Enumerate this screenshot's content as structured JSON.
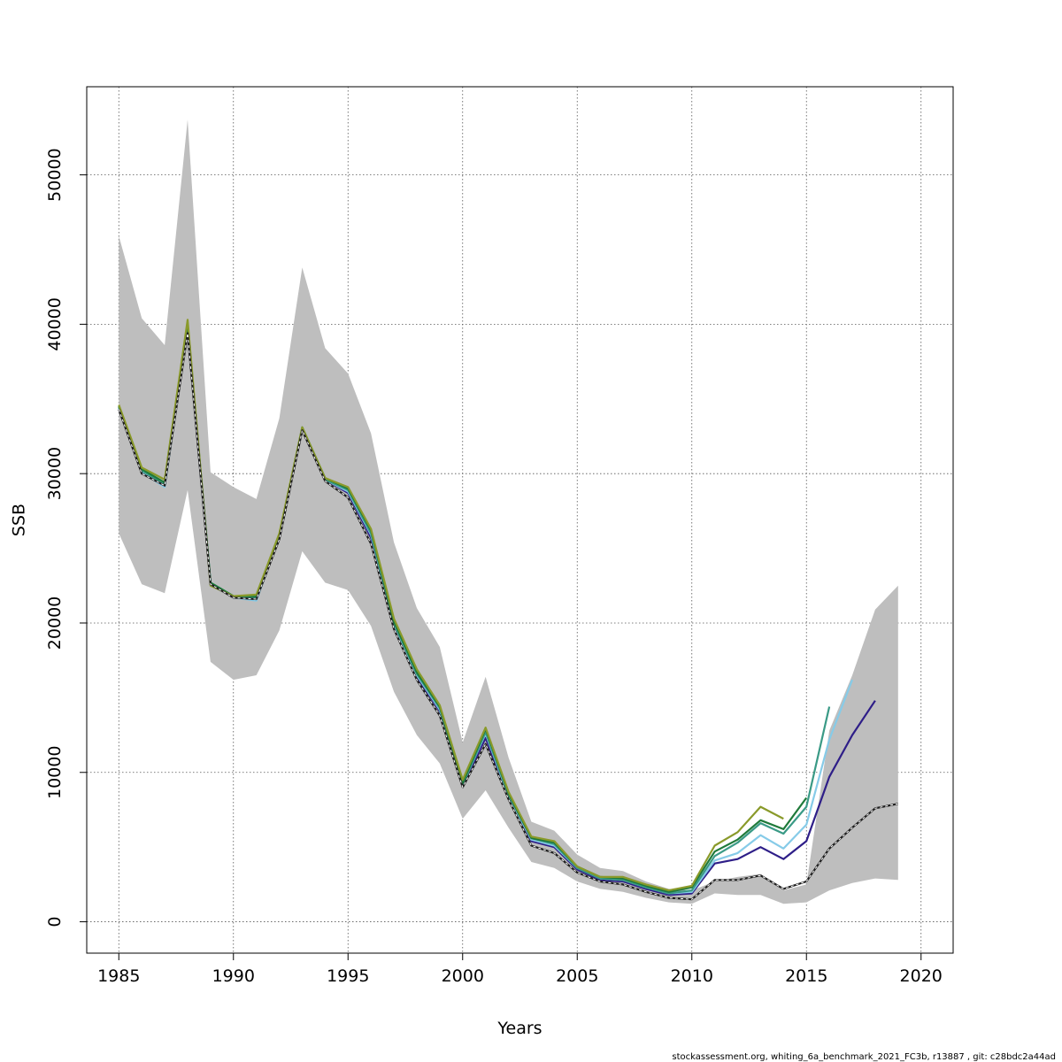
{
  "chart_data": {
    "type": "line",
    "title": "",
    "xlabel": "Years",
    "ylabel": "SSB",
    "xlim": [
      1983.6,
      2021.4
    ],
    "ylim": [
      -2100,
      55900
    ],
    "x_ticks": [
      1985,
      1990,
      1995,
      2000,
      2005,
      2010,
      2015,
      2020
    ],
    "y_ticks": [
      0,
      10000,
      20000,
      30000,
      40000,
      50000
    ],
    "grid": true,
    "grid_style": "dotted",
    "legend": "none",
    "confidence_band": {
      "color": "#bebebe",
      "x": [
        1985,
        1986,
        1987,
        1988,
        1989,
        1990,
        1991,
        1992,
        1993,
        1994,
        1995,
        1996,
        1997,
        1998,
        1999,
        2000,
        2001,
        2002,
        2003,
        2004,
        2005,
        2006,
        2007,
        2008,
        2009,
        2010,
        2011,
        2012,
        2013,
        2014,
        2015,
        2016,
        2017,
        2018,
        2019
      ],
      "upper": [
        45900,
        40400,
        38600,
        53700,
        30100,
        29100,
        28300,
        33700,
        43800,
        38400,
        36700,
        32700,
        25400,
        21000,
        18400,
        12000,
        16400,
        11000,
        6700,
        6100,
        4500,
        3600,
        3400,
        2700,
        2200,
        2100,
        2700,
        3000,
        3200,
        2100,
        2500,
        12800,
        16500,
        20900,
        22500
      ],
      "lower": [
        26000,
        22600,
        22000,
        28900,
        17400,
        16200,
        16500,
        19500,
        24800,
        22700,
        22200,
        19800,
        15400,
        12500,
        10600,
        6900,
        8800,
        6300,
        4000,
        3600,
        2700,
        2200,
        2000,
        1600,
        1300,
        1200,
        1900,
        1800,
        1800,
        1200,
        1300,
        2100,
        2600,
        2900,
        2800
      ]
    },
    "series": [
      {
        "color": "#1e1e1e",
        "dashed_overlay": true,
        "x": [
          1985,
          1986,
          1987,
          1988,
          1989,
          1990,
          1991,
          1992,
          1993,
          1994,
          1995,
          1996,
          1997,
          1998,
          1999,
          2000,
          2001,
          2002,
          2003,
          2004,
          2005,
          2006,
          2007,
          2008,
          2009,
          2010,
          2011,
          2012,
          2013,
          2014,
          2015,
          2016,
          2017,
          2018,
          2019
        ],
        "y": [
          34300,
          30000,
          29200,
          39400,
          22600,
          21700,
          21600,
          25600,
          32900,
          29500,
          28400,
          25300,
          19600,
          16200,
          13800,
          9000,
          11900,
          8200,
          5100,
          4600,
          3300,
          2700,
          2500,
          2000,
          1600,
          1500,
          2800,
          2800,
          3100,
          2200,
          2700,
          4900,
          6300,
          7600,
          7900
        ]
      },
      {
        "color": "#2e1e88",
        "x": [
          1985,
          1986,
          1987,
          1988,
          1989,
          1990,
          1991,
          1992,
          1993,
          1994,
          1995,
          1996,
          1997,
          1998,
          1999,
          2000,
          2001,
          2002,
          2003,
          2004,
          2005,
          2006,
          2007,
          2008,
          2009,
          2010,
          2011,
          2012,
          2013,
          2014,
          2015,
          2016,
          2017,
          2018
        ],
        "y": [
          34400,
          30100,
          29300,
          39600,
          22700,
          21700,
          21600,
          25700,
          33000,
          29600,
          28700,
          25700,
          19800,
          16400,
          14100,
          9100,
          12300,
          8300,
          5400,
          5000,
          3500,
          2800,
          2700,
          2200,
          1800,
          1900,
          3900,
          4200,
          5000,
          4200,
          5400,
          9700,
          12500,
          14800
        ]
      },
      {
        "color": "#86cbe8",
        "x": [
          1985,
          1986,
          1987,
          1988,
          1989,
          1990,
          1991,
          1992,
          1993,
          1994,
          1995,
          1996,
          1997,
          1998,
          1999,
          2000,
          2001,
          2002,
          2003,
          2004,
          2005,
          2006,
          2007,
          2008,
          2009,
          2010,
          2011,
          2012,
          2013,
          2014,
          2015,
          2016,
          2017
        ],
        "y": [
          34400,
          30100,
          29100,
          39700,
          22700,
          21700,
          21500,
          25800,
          33000,
          29600,
          28800,
          25900,
          19900,
          16500,
          14200,
          9200,
          12600,
          8400,
          5500,
          5100,
          3600,
          2900,
          2800,
          2300,
          1900,
          2000,
          4100,
          4600,
          5800,
          4900,
          6500,
          12200,
          16200
        ]
      },
      {
        "color": "#3a9a86",
        "x": [
          1985,
          1986,
          1987,
          1988,
          1989,
          1990,
          1991,
          1992,
          1993,
          1994,
          1995,
          1996,
          1997,
          1998,
          1999,
          2000,
          2001,
          2002,
          2003,
          2004,
          2005,
          2006,
          2007,
          2008,
          2009,
          2010,
          2011,
          2012,
          2013,
          2014,
          2015,
          2016
        ],
        "y": [
          34500,
          30200,
          29300,
          39800,
          22700,
          21800,
          21700,
          25800,
          33000,
          29600,
          28900,
          26000,
          20000,
          16600,
          14300,
          9200,
          12700,
          8500,
          5600,
          5200,
          3600,
          2900,
          2800,
          2300,
          1900,
          2100,
          4400,
          5300,
          6600,
          5900,
          7700,
          14400
        ]
      },
      {
        "color": "#1f7a3a",
        "x": [
          1985,
          1986,
          1987,
          1988,
          1989,
          1990,
          1991,
          1992,
          1993,
          1994,
          1995,
          1996,
          1997,
          1998,
          1999,
          2000,
          2001,
          2002,
          2003,
          2004,
          2005,
          2006,
          2007,
          2008,
          2009,
          2010,
          2011,
          2012,
          2013,
          2014,
          2015
        ],
        "y": [
          34500,
          30300,
          29400,
          40000,
          22700,
          21800,
          21800,
          25900,
          33100,
          29700,
          29000,
          26200,
          20100,
          16700,
          14400,
          9300,
          12900,
          8600,
          5600,
          5300,
          3700,
          3000,
          2900,
          2400,
          2000,
          2300,
          4700,
          5500,
          6800,
          6200,
          8300
        ]
      },
      {
        "color": "#8a9a2a",
        "x": [
          1985,
          1986,
          1987,
          1988,
          1989,
          1990,
          1991,
          1992,
          1993,
          1994,
          1995,
          1996,
          1997,
          1998,
          1999,
          2000,
          2001,
          2002,
          2003,
          2004,
          2005,
          2006,
          2007,
          2008,
          2009,
          2010,
          2011,
          2012,
          2013,
          2014
        ],
        "y": [
          34600,
          30400,
          29600,
          40300,
          22500,
          21800,
          21900,
          26000,
          33100,
          29700,
          29100,
          26300,
          20300,
          16900,
          14500,
          9500,
          13000,
          8700,
          5700,
          5400,
          3700,
          3000,
          3000,
          2500,
          2100,
          2400,
          5100,
          6000,
          7700,
          6900
        ]
      }
    ],
    "footnote": "stockassessment.org, whiting_6a_benchmark_2021_FC3b, r13887 , git: c28bdc2a44ad"
  }
}
